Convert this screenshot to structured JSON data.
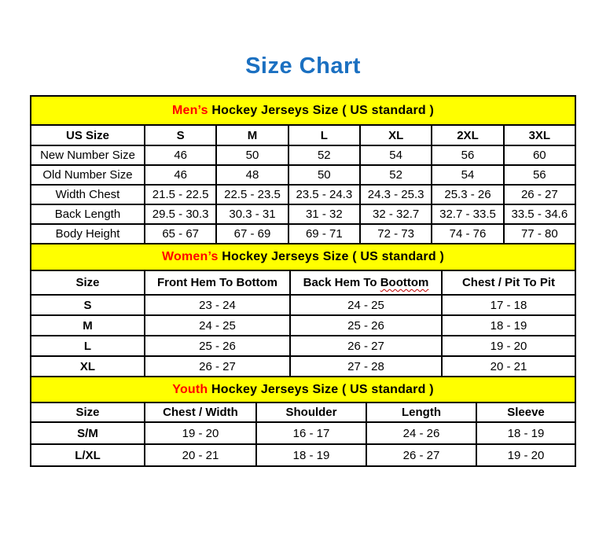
{
  "title": "Size Chart",
  "colors": {
    "title_blue": "#1B70C1",
    "banner_yellow": "#FFFF00",
    "highlight_red": "#FF0000",
    "squiggle_red": "#C00000",
    "border_black": "#000000"
  },
  "sections": [
    {
      "id": "mens",
      "banner": {
        "highlight": "Men’s",
        "rest": " Hockey Jerseys Size ( US standard )"
      },
      "columns": [
        "US Size",
        "S",
        "M",
        "L",
        "XL",
        "2XL",
        "3XL"
      ],
      "bold_first_col": false,
      "rows": [
        [
          "New Number Size",
          "46",
          "50",
          "52",
          "54",
          "56",
          "60"
        ],
        [
          "Old Number Size",
          "46",
          "48",
          "50",
          "52",
          "54",
          "56"
        ],
        [
          "Width Chest",
          "21.5 - 22.5",
          "22.5 - 23.5",
          "23.5 - 24.3",
          "24.3 - 25.3",
          "25.3 - 26",
          "26 - 27"
        ],
        [
          "Back Length",
          "29.5 - 30.3",
          "30.3 - 31",
          "31 - 32",
          "32 - 32.7",
          "32.7 - 33.5",
          "33.5 - 34.6"
        ],
        [
          "Body Height",
          "65 - 67",
          "67 - 69",
          "69 - 71",
          "72 - 73",
          "74 - 76",
          "77 - 80"
        ]
      ]
    },
    {
      "id": "womens",
      "banner": {
        "highlight": "Women’s",
        "rest": " Hockey Jerseys Size ( US standard )"
      },
      "columns": [
        "Size",
        "Front Hem To Bottom",
        {
          "text": "Back Hem To ",
          "misspelled": "Boottom"
        },
        "Chest / Pit To Pit"
      ],
      "bold_first_col": true,
      "rows": [
        [
          "S",
          "23 - 24",
          "24 - 25",
          "17 - 18"
        ],
        [
          "M",
          "24 - 25",
          "25 - 26",
          "18 - 19"
        ],
        [
          "L",
          "25 - 26",
          "26 - 27",
          "19 - 20"
        ],
        [
          "XL",
          "26 - 27",
          "27 - 28",
          "20 - 21"
        ]
      ]
    },
    {
      "id": "youth",
      "banner": {
        "highlight": "Youth",
        "rest": " Hockey Jerseys Size ( US standard )"
      },
      "columns": [
        "Size",
        "Chest / Width",
        "Shoulder",
        "Length",
        "Sleeve"
      ],
      "bold_first_col": true,
      "rows": [
        [
          "S/M",
          "19 - 20",
          "16 - 17",
          "24 - 26",
          "18 - 19"
        ],
        [
          "L/XL",
          "20 - 21",
          "18 - 19",
          "26 - 27",
          "19 - 20"
        ]
      ]
    }
  ]
}
